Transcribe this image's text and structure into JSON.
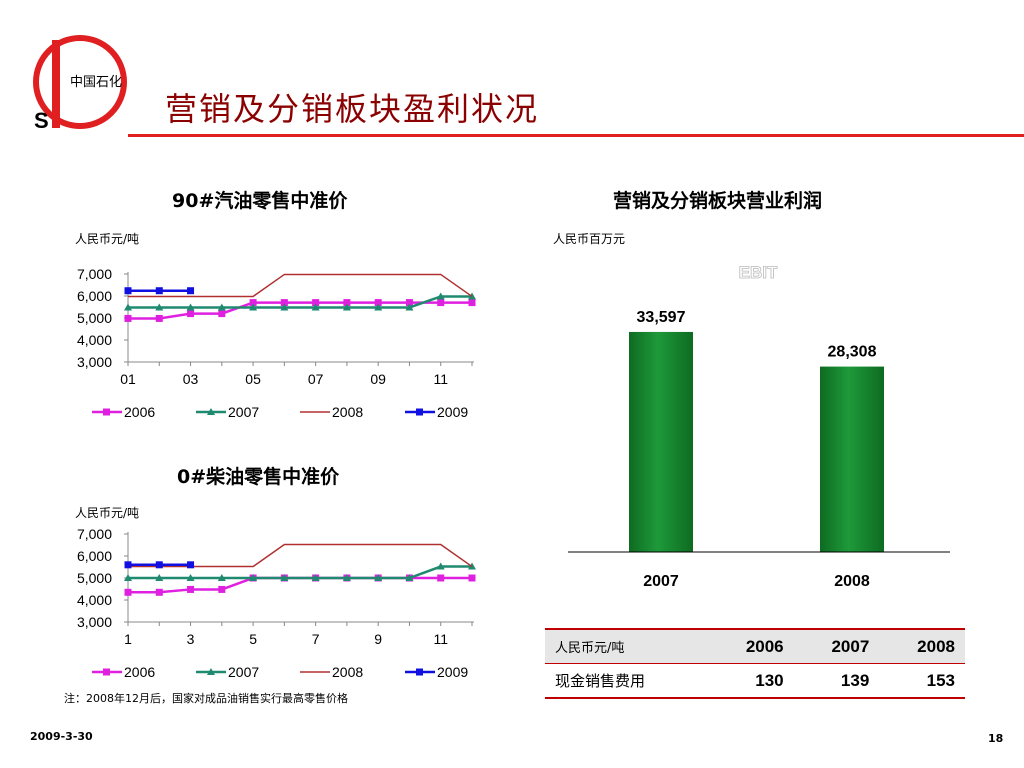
{
  "slide": {
    "title": "营销及分销板块盈利状况",
    "date": "2009-3-30",
    "page_number": "18",
    "note": "注：2008年12月后，国家对成品油销售实行最高零售价格",
    "logo_text": "中国石化",
    "accent_color": "#e02020"
  },
  "chart_data": [
    {
      "type": "line",
      "title": "90#汽油零售中准价",
      "unit": "人民币元/吨",
      "x": [
        1,
        2,
        3,
        4,
        5,
        6,
        7,
        8,
        9,
        10,
        11,
        12
      ],
      "xticks": [
        "01",
        "03",
        "05",
        "07",
        "09",
        "11"
      ],
      "yticks": [
        "7,000",
        "6,000",
        "5,000",
        "4,000",
        "3,000"
      ],
      "ylim": [
        3000,
        7000
      ],
      "legend_position": "bottom",
      "series": [
        {
          "name": "2006",
          "color": "#e020e0",
          "marker": "square",
          "values": [
            4980,
            4980,
            5200,
            5200,
            5700,
            5700,
            5700,
            5700,
            5700,
            5700,
            5700,
            5700
          ]
        },
        {
          "name": "2007",
          "color": "#1f8a70",
          "marker": "triangle",
          "values": [
            5480,
            5480,
            5480,
            5480,
            5480,
            5480,
            5480,
            5480,
            5480,
            5480,
            5980,
            5980
          ]
        },
        {
          "name": "2008",
          "color": "#b03030",
          "marker": "none",
          "values": [
            5980,
            5980,
            5980,
            5980,
            5980,
            6980,
            6980,
            6980,
            6980,
            6980,
            6980,
            5980
          ]
        },
        {
          "name": "2009",
          "color": "#1010e0",
          "marker": "square",
          "values": [
            6240,
            6240,
            6240,
            null,
            null,
            null,
            null,
            null,
            null,
            null,
            null,
            null
          ]
        }
      ]
    },
    {
      "type": "line",
      "title": "0#柴油零售中准价",
      "unit": "人民币元/吨",
      "x": [
        1,
        2,
        3,
        4,
        5,
        6,
        7,
        8,
        9,
        10,
        11,
        12
      ],
      "xticks": [
        "1",
        "3",
        "5",
        "7",
        "9",
        "11"
      ],
      "yticks": [
        "7,000",
        "6,000",
        "5,000",
        "4,000",
        "3,000"
      ],
      "ylim": [
        3000,
        7000
      ],
      "legend_position": "bottom",
      "series": [
        {
          "name": "2006",
          "color": "#e020e0",
          "marker": "square",
          "values": [
            4350,
            4350,
            4480,
            4480,
            5000,
            5000,
            5000,
            5000,
            5000,
            5000,
            5000,
            5000
          ]
        },
        {
          "name": "2007",
          "color": "#1f8a70",
          "marker": "triangle",
          "values": [
            5000,
            5000,
            5000,
            5000,
            5000,
            5000,
            5000,
            5000,
            5000,
            5000,
            5520,
            5520
          ]
        },
        {
          "name": "2008",
          "color": "#b03030",
          "marker": "none",
          "values": [
            5520,
            5520,
            5520,
            5520,
            5520,
            6520,
            6520,
            6520,
            6520,
            6520,
            6520,
            5520
          ]
        },
        {
          "name": "2009",
          "color": "#1010e0",
          "marker": "square",
          "values": [
            5600,
            5600,
            5600,
            null,
            null,
            null,
            null,
            null,
            null,
            null,
            null,
            null
          ]
        }
      ]
    },
    {
      "type": "bar",
      "title": "营销及分销板块营业利润",
      "unit": "人民币百万元",
      "annotation": "EBIT",
      "categories": [
        "2007",
        "2008"
      ],
      "values": [
        33597,
        28308
      ],
      "value_labels": [
        "33,597",
        "28,308"
      ],
      "color": "#1e9a3a",
      "ylim": [
        0,
        40000
      ]
    },
    {
      "type": "table",
      "header": [
        "人民币元/吨",
        "2006",
        "2007",
        "2008"
      ],
      "rows": [
        [
          "现金销售费用",
          "130",
          "139",
          "153"
        ]
      ]
    }
  ]
}
